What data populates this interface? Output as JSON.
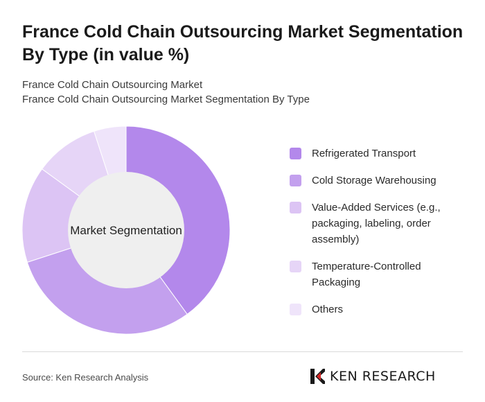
{
  "header": {
    "title": "France Cold Chain Outsourcing Market Segmentation By Type (in value %)",
    "subtitle_line1": "France Cold Chain Outsourcing Market",
    "subtitle_line2": "France Cold Chain Outsourcing Market Segmentation By Type"
  },
  "chart_data": {
    "type": "pie",
    "center_label": "Market Segmentation",
    "categories": [
      "Refrigerated Transport",
      "Cold Storage Warehousing",
      "Value-Added Services (e.g., packaging, labeling, order assembly)",
      "Temperature-Controlled Packaging",
      "Others"
    ],
    "values": [
      40,
      30,
      15,
      10,
      5
    ],
    "colors": [
      "#b388eb",
      "#c3a0ee",
      "#dcc4f4",
      "#e6d5f7",
      "#efe4fa"
    ],
    "legend_position": "right",
    "hole_color": "#efefef"
  },
  "footer": {
    "source": "Source: Ken Research Analysis",
    "brand_name": "KEN RESEARCH",
    "brand_icon": "ken-research-logo-icon"
  }
}
